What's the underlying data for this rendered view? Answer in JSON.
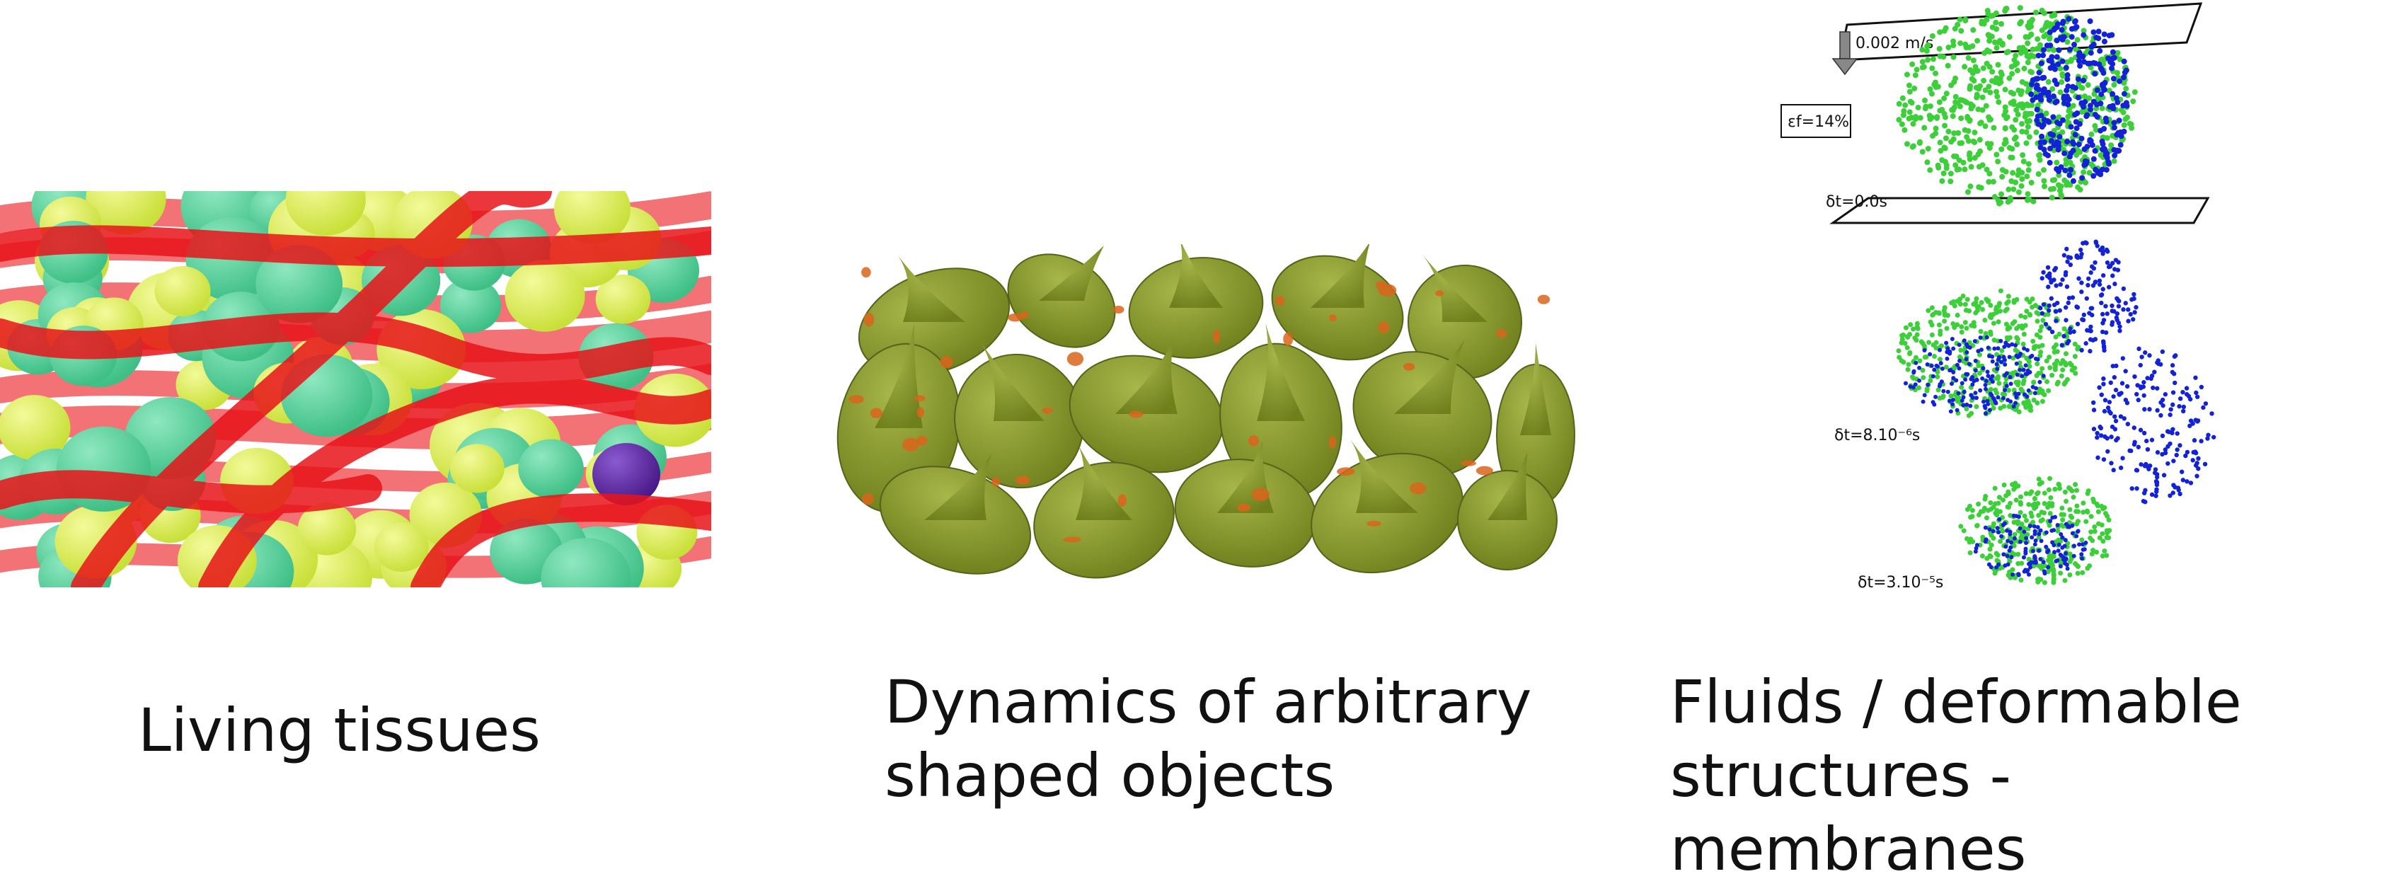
{
  "panels": [
    {
      "id": "living-tissues",
      "caption": "Living tissues",
      "colors": {
        "vessel": "#e8141a",
        "cell_yellow": "#c9e03a",
        "cell_green": "#3fbf86",
        "cell_purple": "#4a1a8a"
      }
    },
    {
      "id": "arbitrary-shapes",
      "caption": "Dynamics of arbitrary\nshaped objects",
      "colors": {
        "body": "#6e7f1c",
        "spot": "#d9651b"
      }
    },
    {
      "id": "fluids-membranes",
      "caption": "Fluids / deformable\nstructures - membranes",
      "velocity_label": "0.002 m/s",
      "strain_label": "εf=14%",
      "time_labels": [
        "δt=0.0s",
        "δt=8.10⁻⁶s",
        "δt=3.10⁻⁵s"
      ],
      "colors": {
        "membrane": "#3ccf3a",
        "fluid": "#1422d6"
      }
    }
  ]
}
